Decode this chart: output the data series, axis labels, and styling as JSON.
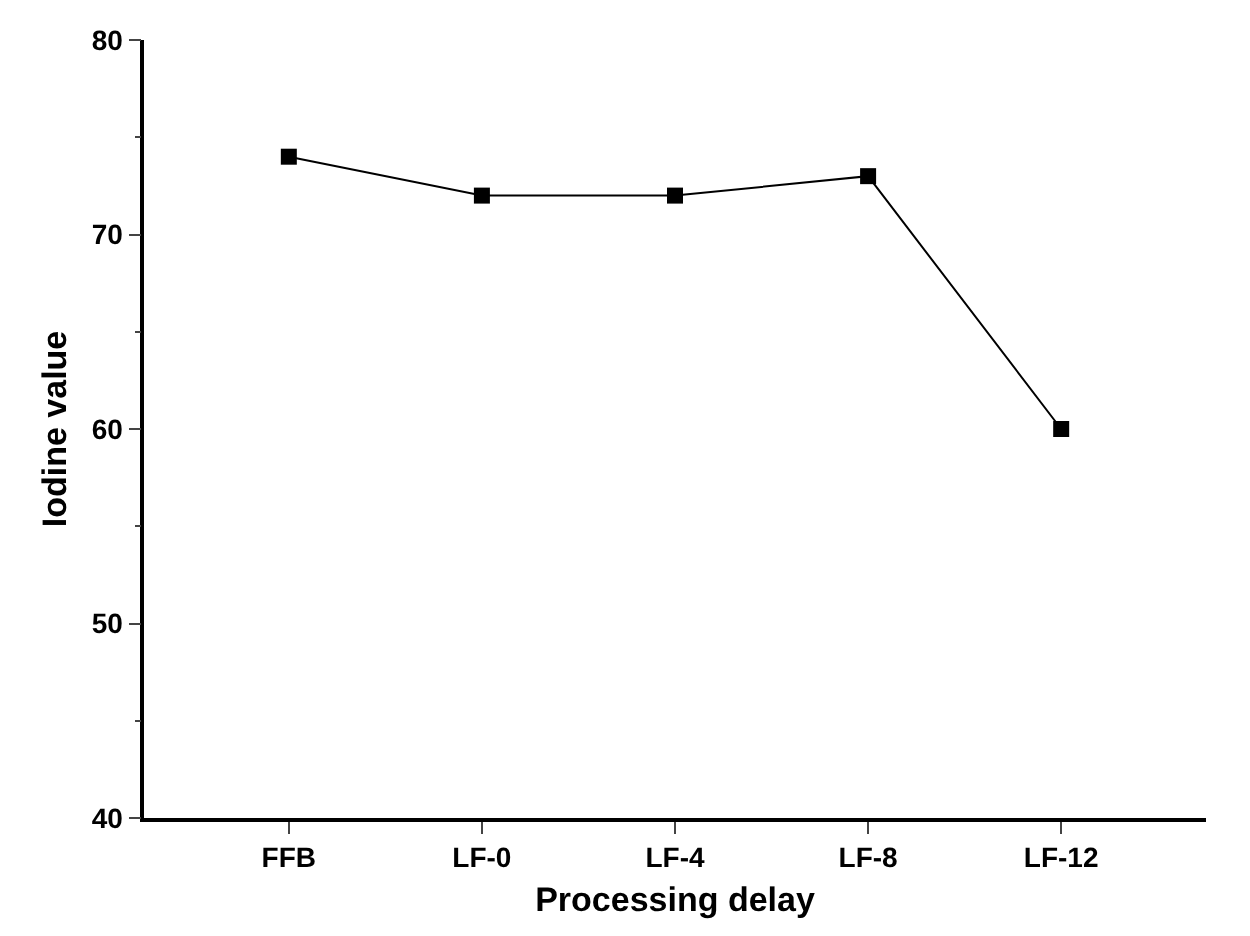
{
  "chart_data": {
    "type": "line",
    "xlabel": "Processing delay",
    "ylabel": "Iodine value",
    "categories": [
      "FFB",
      "LF-0",
      "LF-4",
      "LF-8",
      "LF-12"
    ],
    "series": [
      {
        "color": "#000000",
        "values": [
          74,
          72,
          72,
          73,
          60
        ]
      }
    ],
    "ylim": [
      40,
      80
    ],
    "yticks": [
      40,
      50,
      60,
      70,
      80
    ],
    "marker": "square",
    "line_style": "solid"
  }
}
